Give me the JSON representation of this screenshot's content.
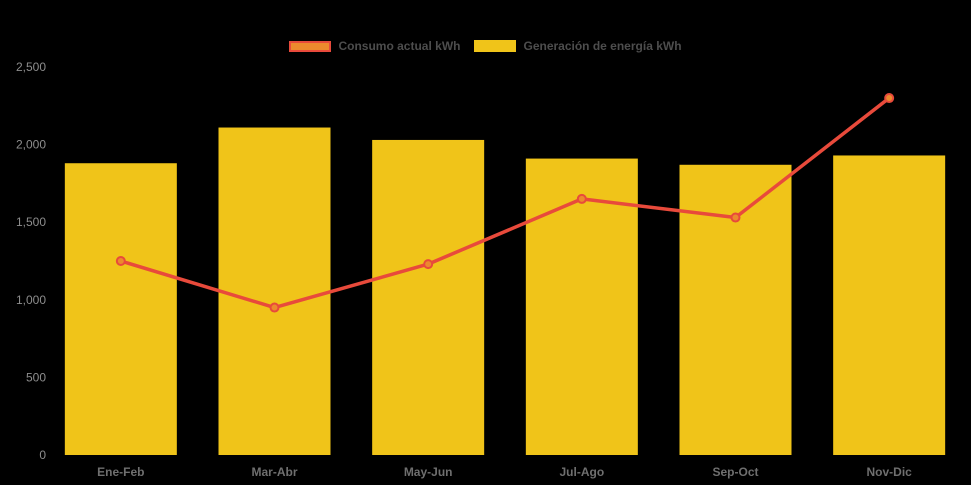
{
  "chart_data": {
    "type": "bar",
    "background": "#000000",
    "categories": [
      "Ene-Feb",
      "Mar-Abr",
      "May-Jun",
      "Jul-Ago",
      "Sep-Oct",
      "Nov-Dic"
    ],
    "series": [
      {
        "name": "Consumo actual kWh",
        "type": "line",
        "values": [
          1250,
          950,
          1230,
          1650,
          1530,
          2300
        ],
        "color": "#e84a3b",
        "marker_fill": "#ec8a2d"
      },
      {
        "name": "Generación de energía kWh",
        "type": "bar",
        "values": [
          1880,
          2110,
          2030,
          1910,
          1870,
          1930
        ],
        "color": "#f0c419"
      }
    ],
    "ylim": [
      0,
      2500
    ],
    "yticks": {
      "values": [
        0,
        500,
        1000,
        1500,
        2000,
        2500
      ],
      "labels": [
        "0",
        "500",
        "1,000",
        "1,500",
        "2,000",
        "2,500"
      ]
    },
    "xlabel": "",
    "ylabel": "",
    "title": "",
    "grid": false,
    "legend_position": "top-center",
    "tick_color": "#8d8d8d",
    "x_label_color": "#6f6f6f",
    "legend_text_color": "#4d4d4d"
  }
}
